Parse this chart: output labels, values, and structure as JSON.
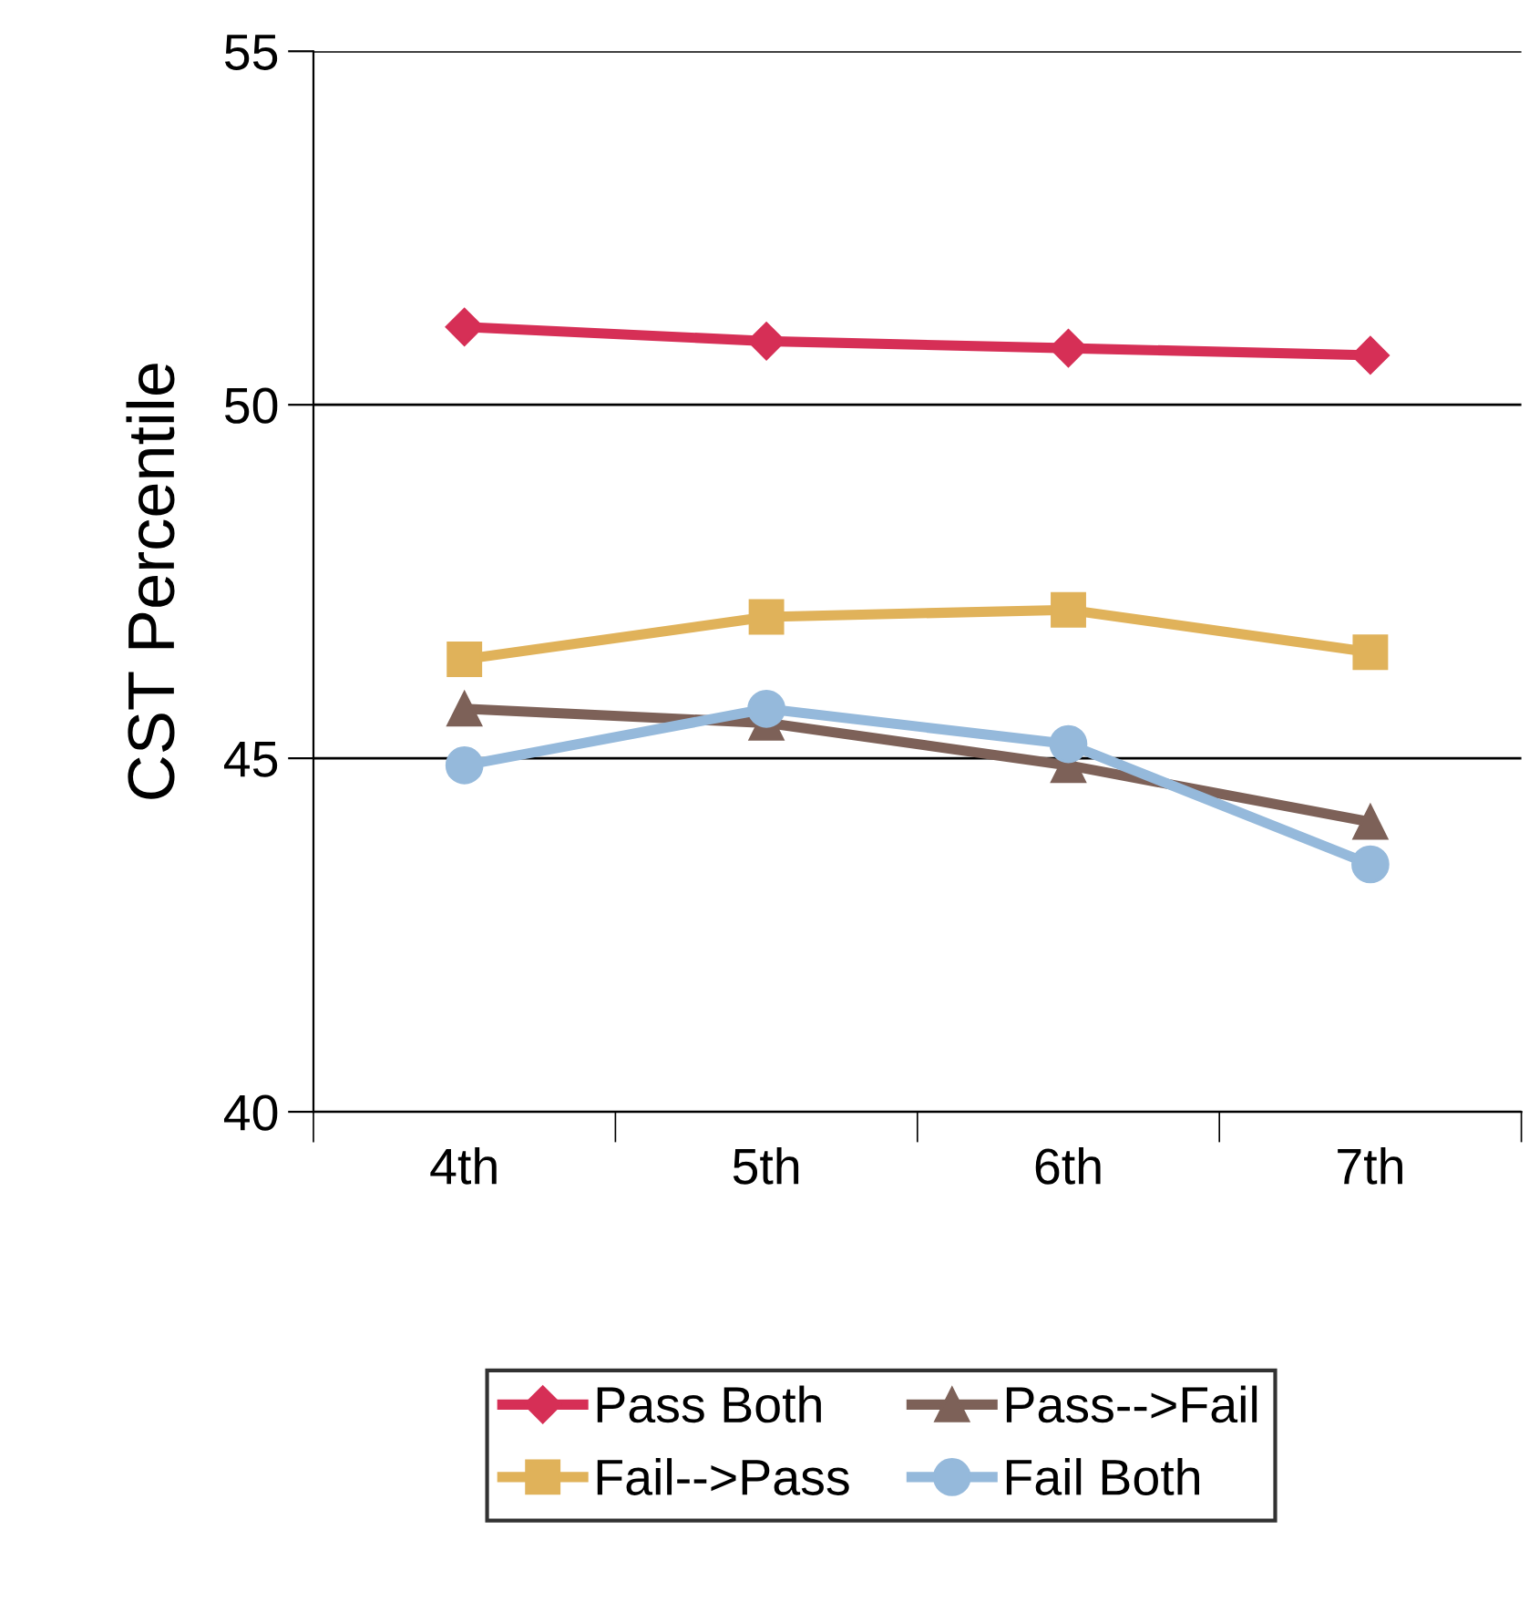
{
  "chart_data": {
    "type": "line",
    "ylabel": "CST Percentile",
    "categories": [
      "4th",
      "5th",
      "6th",
      "7th"
    ],
    "series": [
      {
        "name": "Pass Both",
        "color": "#d62f56",
        "marker": "diamond",
        "values": [
          51.1,
          50.9,
          50.8,
          50.7
        ]
      },
      {
        "name": "Fail-->Pass",
        "color": "#e0b25a",
        "marker": "square",
        "values": [
          46.4,
          47.0,
          47.1,
          46.5
        ]
      },
      {
        "name": "Pass-->Fail",
        "color": "#7d6158",
        "marker": "triangle",
        "values": [
          45.7,
          45.5,
          44.9,
          44.1
        ]
      },
      {
        "name": "Fail Both",
        "color": "#95b9db",
        "marker": "circle",
        "values": [
          44.9,
          45.7,
          45.2,
          43.5
        ]
      }
    ],
    "ylim": [
      40,
      55
    ],
    "yticks": [
      40,
      45,
      50,
      55
    ],
    "grid": "y",
    "legend": "bottom",
    "line_style": "solid"
  }
}
